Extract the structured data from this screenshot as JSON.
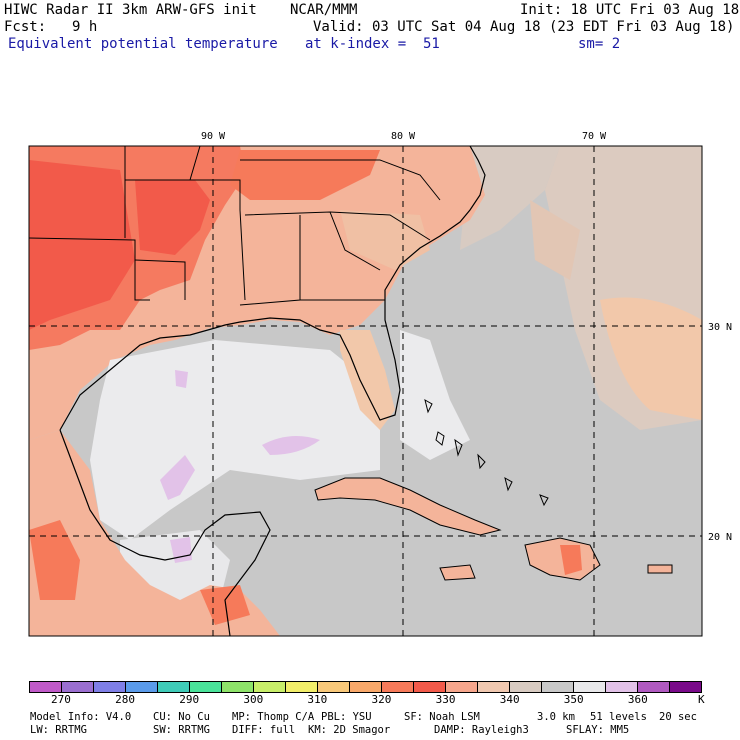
{
  "header": {
    "model_title": "HIWC Radar II 3km ARW-GFS init",
    "org": "NCAR/MMM",
    "init": "Init: 18 UTC Fri 03 Aug 18",
    "fcst_label": "Fcst:",
    "fcst_value": "9 h",
    "valid": "Valid: 03 UTC Sat 04 Aug 18 (23 EDT Fri 03 Aug 18)",
    "field": "Equivalent potential temperature",
    "level": "at k-index =  51",
    "smooth": "sm= 2"
  },
  "map": {
    "lon_labels": [
      "90 W",
      "80 W",
      "70 W"
    ],
    "lat_labels": [
      "30 N",
      "20 N"
    ]
  },
  "colorbar": {
    "colors": [
      "#c05ac8",
      "#9b6fd0",
      "#7f7fe6",
      "#5b9bea",
      "#3fcbb8",
      "#4ae39a",
      "#8ee36a",
      "#c8ee6a",
      "#f2ee6a",
      "#f8c87a",
      "#f8a86a",
      "#f67a5a",
      "#f25a4a",
      "#f6a68c",
      "#f0c8b0",
      "#d8cbc2",
      "#c8c8c8",
      "#e8e8ea",
      "#e2c2e8",
      "#b05ac0",
      "#7a0a8a"
    ],
    "labels": [
      "270",
      "280",
      "290",
      "300",
      "310",
      "320",
      "330",
      "340",
      "350",
      "360"
    ],
    "unit": "K"
  },
  "footer": {
    "line1": [
      "Model Info: V4.0",
      "CU: No Cu",
      "MP: Thomp C/A",
      "PBL: YSU",
      "SF: Noah LSM",
      "3.0 km",
      "51 levels",
      "20 sec"
    ],
    "line2": [
      "LW: RRTMG",
      "SW: RRTMG",
      "DIFF: full",
      "KM: 2D Smagor",
      "DAMP: Rayleigh3",
      "SFLAY: MM5"
    ]
  }
}
